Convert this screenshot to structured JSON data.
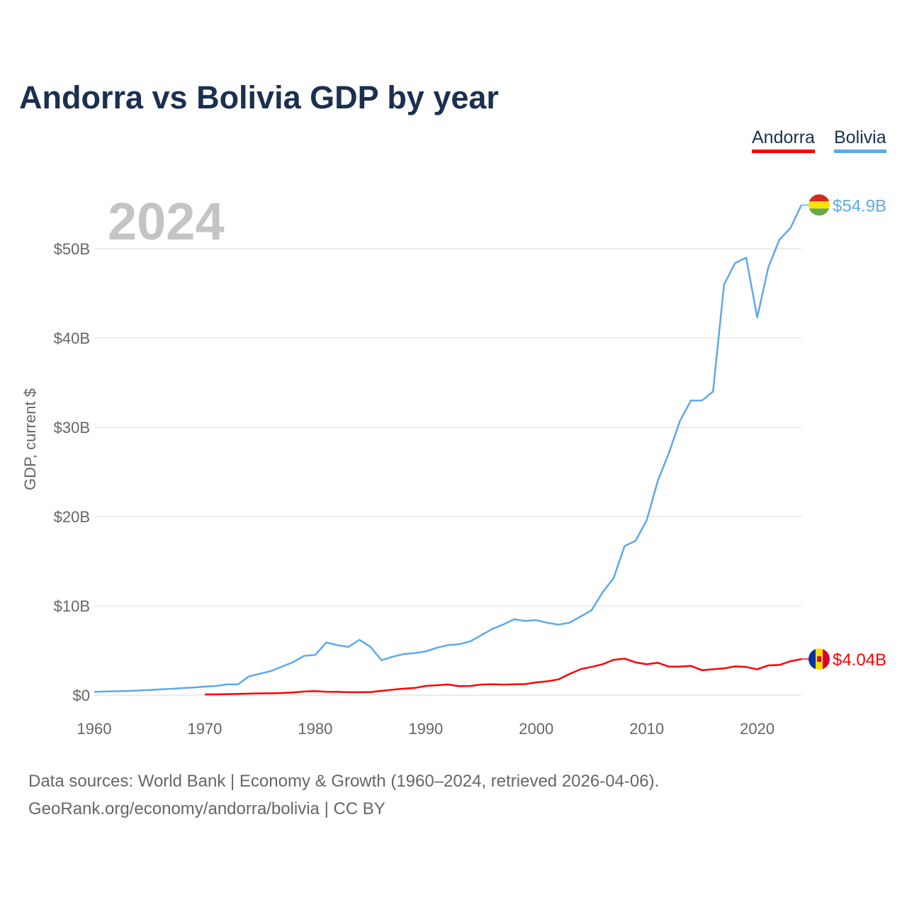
{
  "title": "Andorra vs Bolivia GDP by year",
  "year_label": "2024",
  "source_line1": "Data sources: World Bank | Economy & Growth (1960–2024, retrieved 2026-04-06).",
  "source_line2": "GeoRank.org/economy/andorra/bolivia | CC BY",
  "chart_data": {
    "type": "line",
    "title": "Andorra vs Bolivia GDP by year",
    "xlabel": "",
    "ylabel": "GDP, current $",
    "xlim": [
      1960,
      2024
    ],
    "ylim": [
      0,
      55
    ],
    "x_ticks": [
      1960,
      1970,
      1980,
      1990,
      2000,
      2010,
      2020
    ],
    "y_ticks": [
      {
        "v": 0,
        "label": "$0"
      },
      {
        "v": 10,
        "label": "$10B"
      },
      {
        "v": 20,
        "label": "$20B"
      },
      {
        "v": 30,
        "label": "$30B"
      },
      {
        "v": 40,
        "label": "$40B"
      },
      {
        "v": 50,
        "label": "$50B"
      }
    ],
    "grid": true,
    "legend": "top-right",
    "series": [
      {
        "name": "Andorra",
        "color": "#ff0000",
        "end_label": "$4.04B",
        "start": 1970,
        "values": [
          0.08,
          0.09,
          0.11,
          0.14,
          0.17,
          0.2,
          0.21,
          0.24,
          0.3,
          0.41,
          0.45,
          0.38,
          0.37,
          0.33,
          0.33,
          0.35,
          0.48,
          0.61,
          0.72,
          0.8,
          1.03,
          1.1,
          1.2,
          1.0,
          1.02,
          1.18,
          1.22,
          1.18,
          1.21,
          1.24,
          1.43,
          1.55,
          1.76,
          2.36,
          2.9,
          3.16,
          3.46,
          3.95,
          4.09,
          3.67,
          3.45,
          3.63,
          3.19,
          3.19,
          3.27,
          2.79,
          2.9,
          3.0,
          3.22,
          3.15,
          2.89,
          3.33,
          3.38,
          3.79,
          4.04
        ]
      },
      {
        "name": "Bolivia",
        "color": "#5ea8ec",
        "end_label": "$54.9B",
        "start": 1960,
        "values": [
          0.37,
          0.41,
          0.44,
          0.47,
          0.52,
          0.58,
          0.64,
          0.7,
          0.79,
          0.85,
          0.95,
          1.02,
          1.2,
          1.2,
          2.1,
          2.4,
          2.7,
          3.2,
          3.7,
          4.4,
          4.5,
          5.9,
          5.6,
          5.4,
          6.2,
          5.4,
          3.9,
          4.3,
          4.6,
          4.7,
          4.9,
          5.3,
          5.6,
          5.7,
          6.0,
          6.7,
          7.4,
          7.9,
          8.5,
          8.3,
          8.4,
          8.1,
          7.9,
          8.1,
          8.8,
          9.5,
          11.5,
          13.1,
          16.7,
          17.3,
          19.6,
          24.0,
          27.1,
          30.7,
          33.0,
          33.0,
          34.0,
          46.0,
          48.4,
          49.0,
          42.3,
          47.9,
          51.0,
          52.3,
          54.9
        ]
      }
    ]
  }
}
